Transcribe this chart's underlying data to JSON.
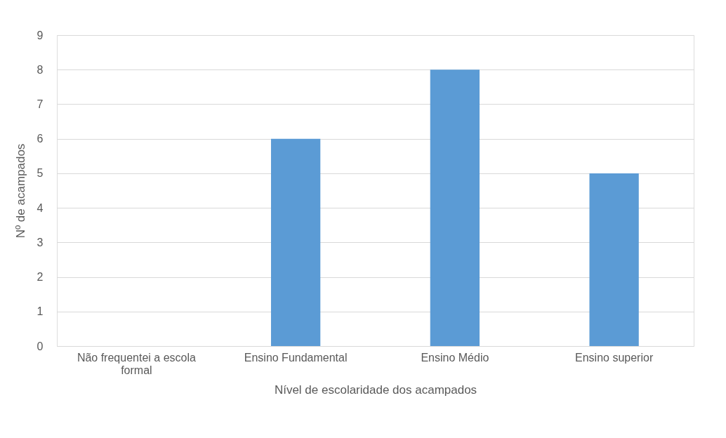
{
  "chart_data": {
    "type": "bar",
    "xlabel": "Nível de escolaridade dos acampados",
    "ylabel": "Nº de acampados",
    "categories": [
      "Não frequentei a escola formal",
      "Ensino Fundamental",
      "Ensino Médio",
      "Ensino superior"
    ],
    "values": [
      0,
      6,
      8,
      5
    ],
    "color": "#5b9bd5",
    "ylim": [
      0,
      9
    ],
    "yticks": [
      0,
      1,
      2,
      3,
      4,
      5,
      6,
      7,
      8,
      9
    ],
    "grid": "y"
  }
}
